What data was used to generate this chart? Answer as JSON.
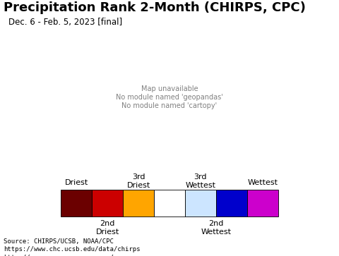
{
  "title": "Precipitation Rank 2-Month (CHIRPS, CPC)",
  "subtitle": "Dec. 6 - Feb. 5, 2023 [final]",
  "map_bg_color": "#b8e8f0",
  "land_color": "#ffffff",
  "border_color": "#000000",
  "legend_colors": [
    "#6b0000",
    "#cc0000",
    "#ffa500",
    "#ffffff",
    "#cce5ff",
    "#0000cc",
    "#cc00cc"
  ],
  "source_text": "Source: CHIRPS/UCSB, NOAA/CPC\nhttps://www.chc.ucsb.edu/data/chirps\nhttp://www.cpc.ncep.noaa.gov/",
  "footer_bg": "#d8d8d8",
  "title_fontsize": 13,
  "subtitle_fontsize": 8.5,
  "legend_fontsize": 8,
  "source_fontsize": 6.5
}
